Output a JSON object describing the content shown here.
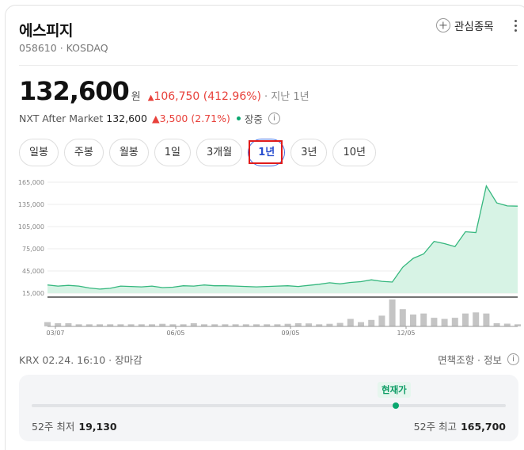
{
  "stock": {
    "name": "에스피지",
    "code": "058610",
    "sep": "·",
    "market": "KOSDAQ"
  },
  "watch_label": "관심종목",
  "price": {
    "value": "132,600",
    "unit": "원",
    "arrow": "▲",
    "change": "106,750",
    "change_pct": "(412.96%)",
    "period": "· 지난 1년"
  },
  "nxt": {
    "label": "NXT After Market",
    "value": "132,600",
    "change": "▲3,500",
    "change_pct": "(2.71%)",
    "status": "장중",
    "info": "i"
  },
  "tabs": [
    {
      "label": "일봉"
    },
    {
      "label": "주봉"
    },
    {
      "label": "월봉"
    },
    {
      "label": "1일"
    },
    {
      "label": "3개월"
    },
    {
      "label": "1년"
    },
    {
      "label": "3년"
    },
    {
      "label": "10년"
    }
  ],
  "active_tab": "1년",
  "colors": {
    "up": "#e8413b",
    "area_fill": "#d7f3e5",
    "area_line": "#35b77e",
    "bar": "#c4c4c4",
    "accent": "#2a4fcf"
  },
  "chart_data": {
    "type": "area",
    "y_ticks": [
      "165,000",
      "135,000",
      "105,000",
      "75,000",
      "45,000",
      "15,000"
    ],
    "y_tick_values": [
      165000,
      135000,
      105000,
      75000,
      45000,
      15000
    ],
    "ylim": [
      15000,
      165000
    ],
    "x_ticks": [
      "03/07",
      "06/05",
      "09/05",
      "12/05"
    ],
    "grid": true,
    "price_series": [
      26000,
      24500,
      25500,
      24500,
      22000,
      20500,
      21500,
      24500,
      24000,
      23500,
      24500,
      22500,
      23000,
      25000,
      24500,
      26000,
      25000,
      25000,
      24500,
      24000,
      23500,
      24000,
      24500,
      25000,
      24000,
      25500,
      27000,
      29000,
      27500,
      29500,
      30500,
      33000,
      31000,
      30000,
      50000,
      62000,
      68000,
      85000,
      82000,
      78000,
      98000,
      97000,
      160000,
      137000,
      133000,
      132600
    ],
    "volume_series": [
      2,
      1.5,
      1.5,
      1,
      1,
      1,
      1,
      1,
      1,
      1,
      1,
      1.2,
      1,
      1,
      1.5,
      1,
      1,
      1,
      1,
      1,
      1,
      1,
      1,
      1.2,
      1.5,
      1.4,
      1,
      1.2,
      1.6,
      3.5,
      2,
      3,
      5,
      12.5,
      8,
      5.5,
      6,
      4,
      3.5,
      4,
      6,
      6.5,
      6,
      1.5,
      1.3,
      1
    ]
  },
  "footer": {
    "left": "KRX 02.24. 16:10 · 장마감",
    "right": "면책조항 · 정보",
    "info": "i"
  },
  "range": {
    "current_label": "현재가",
    "low_label": "52주 최저",
    "low_value": "19,130",
    "high_label": "52주 최고",
    "high_value": "165,700"
  }
}
